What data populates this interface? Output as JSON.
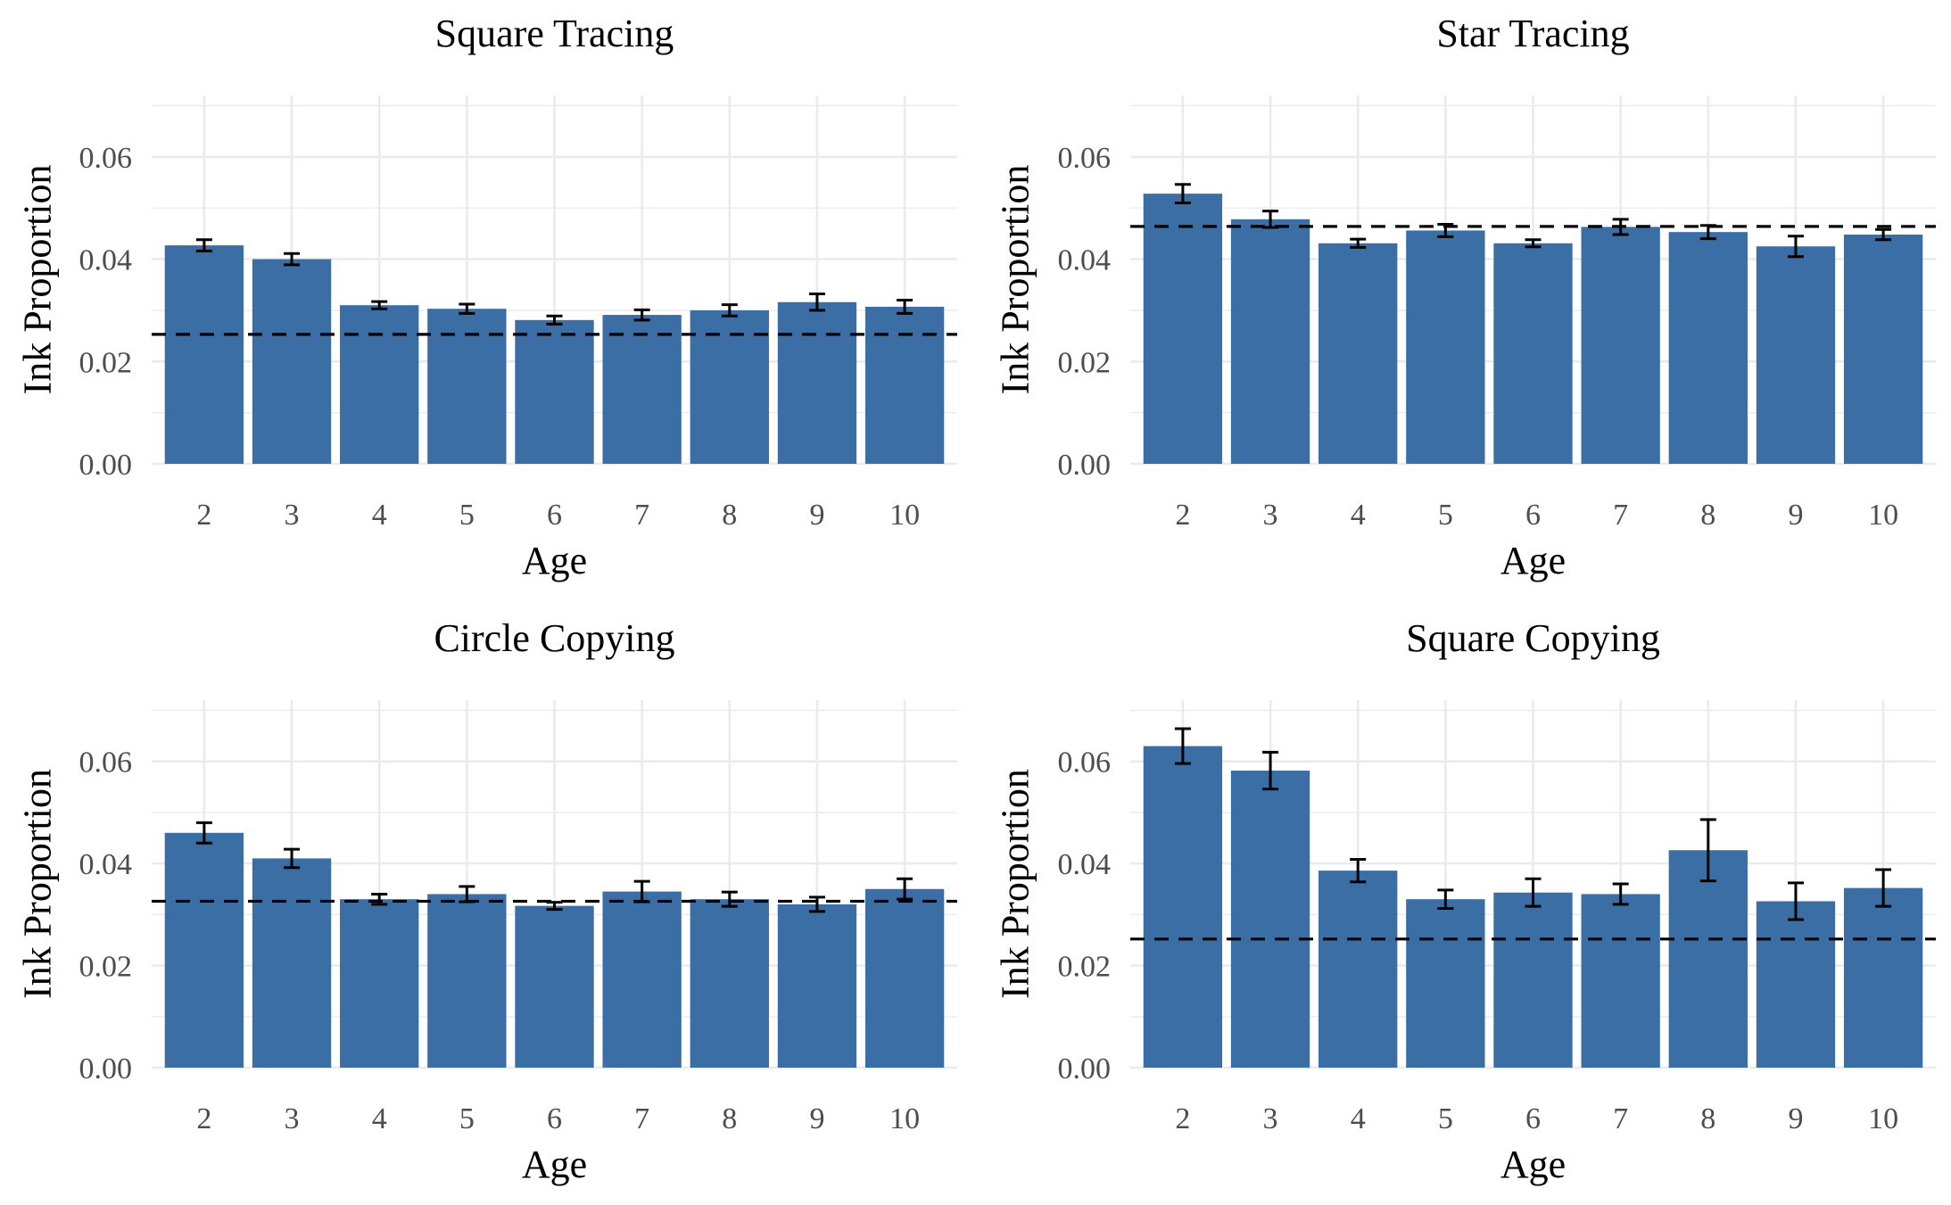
{
  "chart_data": [
    {
      "type": "bar",
      "title": "Square Tracing",
      "xlabel": "Age",
      "ylabel": "Ink Proportion",
      "categories": [
        "2",
        "3",
        "4",
        "5",
        "6",
        "7",
        "8",
        "9",
        "10"
      ],
      "values": [
        0.0427,
        0.04,
        0.031,
        0.0303,
        0.0281,
        0.0291,
        0.03,
        0.0316,
        0.0307
      ],
      "error_low": [
        0.0416,
        0.0389,
        0.0303,
        0.0294,
        0.0273,
        0.0281,
        0.0289,
        0.03,
        0.0294
      ],
      "error_high": [
        0.0438,
        0.0411,
        0.0317,
        0.0312,
        0.0289,
        0.0301,
        0.0311,
        0.0332,
        0.032
      ],
      "reference_line": 0.0253,
      "ylim": [
        0,
        0.072
      ],
      "yticks": [
        "0.00",
        "0.02",
        "0.04",
        "0.06"
      ],
      "grid": true
    },
    {
      "type": "bar",
      "title": "Star Tracing",
      "xlabel": "Age",
      "ylabel": "Ink Proportion",
      "categories": [
        "2",
        "3",
        "4",
        "5",
        "6",
        "7",
        "8",
        "9",
        "10"
      ],
      "values": [
        0.0528,
        0.0478,
        0.0431,
        0.0456,
        0.0431,
        0.0463,
        0.0453,
        0.0425,
        0.0448
      ],
      "error_low": [
        0.051,
        0.0462,
        0.0423,
        0.0444,
        0.0424,
        0.0448,
        0.044,
        0.0405,
        0.0438
      ],
      "error_high": [
        0.0546,
        0.0494,
        0.0439,
        0.0468,
        0.0438,
        0.0478,
        0.0466,
        0.0445,
        0.0458
      ],
      "reference_line": 0.0464,
      "ylim": [
        0,
        0.072
      ],
      "yticks": [
        "0.00",
        "0.02",
        "0.04",
        "0.06"
      ],
      "grid": true
    },
    {
      "type": "bar",
      "title": "Circle Copying",
      "xlabel": "Age",
      "ylabel": "Ink Proportion",
      "categories": [
        "2",
        "3",
        "4",
        "5",
        "6",
        "7",
        "8",
        "9",
        "10"
      ],
      "values": [
        0.046,
        0.041,
        0.033,
        0.034,
        0.0317,
        0.0345,
        0.033,
        0.032,
        0.035
      ],
      "error_low": [
        0.044,
        0.0392,
        0.032,
        0.0325,
        0.031,
        0.0325,
        0.0316,
        0.0306,
        0.033
      ],
      "error_high": [
        0.048,
        0.0428,
        0.034,
        0.0355,
        0.0324,
        0.0365,
        0.0344,
        0.0334,
        0.037
      ],
      "reference_line": 0.0326,
      "ylim": [
        0,
        0.072
      ],
      "yticks": [
        "0.00",
        "0.02",
        "0.04",
        "0.06"
      ],
      "grid": true
    },
    {
      "type": "bar",
      "title": "Square Copying",
      "xlabel": "Age",
      "ylabel": "Ink Proportion",
      "categories": [
        "2",
        "3",
        "4",
        "5",
        "6",
        "7",
        "8",
        "9",
        "10"
      ],
      "values": [
        0.063,
        0.0582,
        0.0386,
        0.033,
        0.0343,
        0.034,
        0.0426,
        0.0326,
        0.0352
      ],
      "error_low": [
        0.0596,
        0.0546,
        0.0364,
        0.0312,
        0.0316,
        0.032,
        0.0366,
        0.029,
        0.0316
      ],
      "error_high": [
        0.0664,
        0.0618,
        0.0408,
        0.0348,
        0.037,
        0.036,
        0.0486,
        0.0362,
        0.0388
      ],
      "reference_line": 0.0252,
      "ylim": [
        0,
        0.072
      ],
      "yticks": [
        "0.00",
        "0.02",
        "0.04",
        "0.06"
      ],
      "grid": true
    }
  ]
}
